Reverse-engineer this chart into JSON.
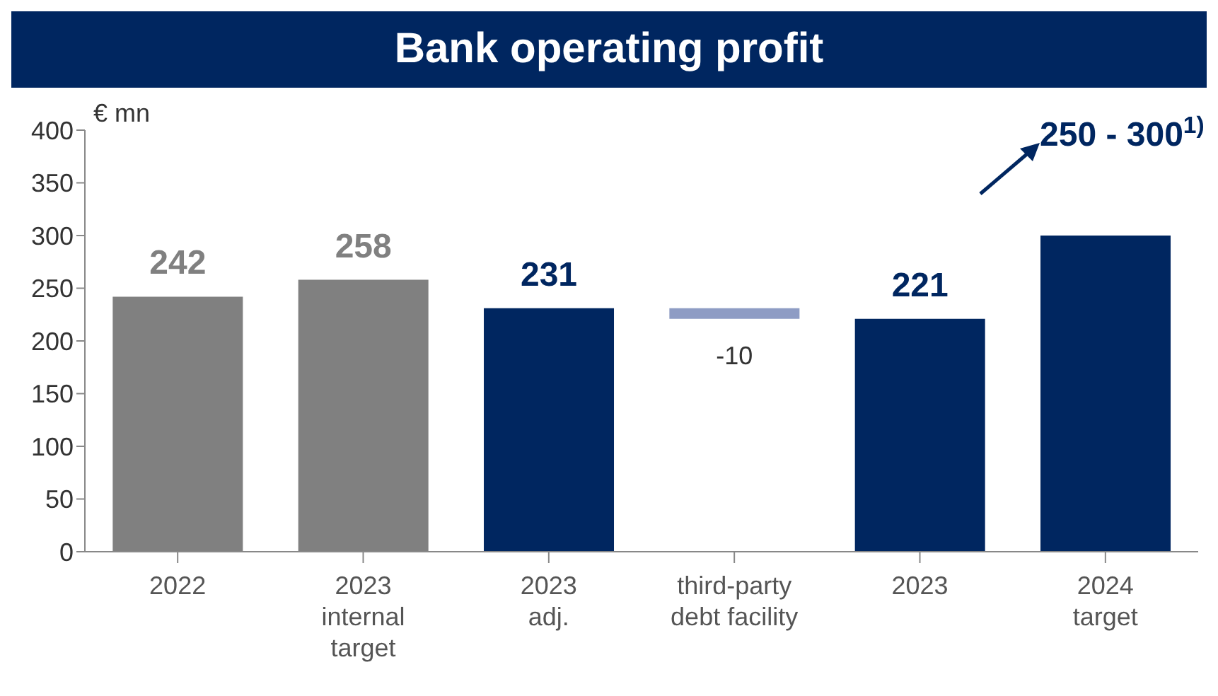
{
  "chart_data": {
    "type": "bar",
    "title": "Bank operating profit",
    "ylabel": "€ mn",
    "categories": [
      "2022",
      "2023\ninternal\ntarget",
      "2023\nadj.",
      "third-party\ndebt facility",
      "2023",
      "2024\ntarget"
    ],
    "values": [
      242,
      258,
      231,
      -10,
      221,
      300
    ],
    "base": [
      0,
      0,
      0,
      231,
      0,
      0
    ],
    "colors": [
      "#808080",
      "#808080",
      "#002660",
      "#8e9cc4",
      "#002660",
      "#002660"
    ],
    "value_labels": [
      "242",
      "258",
      "231",
      "-10",
      "221",
      null
    ],
    "annotations": [
      "250 - 300$^{1)}$"
    ],
    "ylim": [
      0,
      400
    ],
    "yticks": [
      0,
      50,
      100,
      150,
      200,
      250,
      300,
      350,
      400
    ]
  }
}
